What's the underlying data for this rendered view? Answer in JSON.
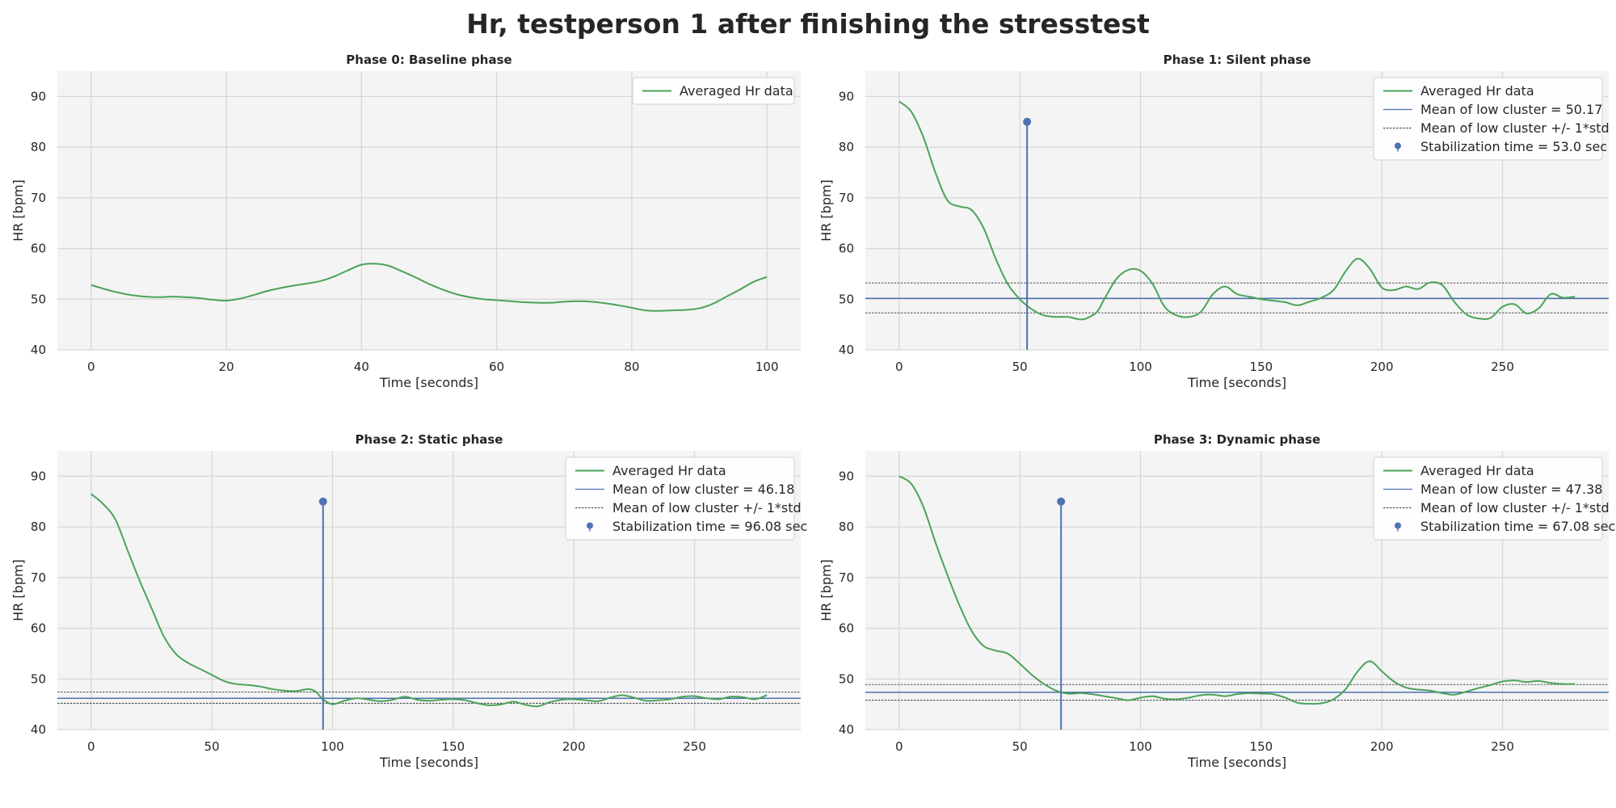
{
  "figure": {
    "title": "Hr, testperson 1 after finishing the stresstest"
  },
  "colors": {
    "hr_line": "#4aa35a",
    "mean_line": "#4c72b0",
    "std_line": "#333333",
    "stab_marker": "#4c72b0",
    "axes_bg": "#f4f4f4",
    "grid": "#d7d7d7"
  },
  "chart_data": [
    {
      "type": "line",
      "title": "Phase 0: Baseline phase",
      "xlabel": "Time [seconds]",
      "ylabel": "HR [bpm]",
      "xlim": [
        -5,
        105
      ],
      "ylim": [
        40,
        95
      ],
      "xticks": [
        0,
        20,
        40,
        60,
        80,
        100
      ],
      "yticks": [
        40,
        50,
        60,
        70,
        80,
        90
      ],
      "grid": true,
      "legend_position": "top-right",
      "series": [
        {
          "name": "Averaged Hr data",
          "x": [
            0,
            2,
            4,
            6,
            8,
            10,
            12,
            14,
            16,
            18,
            20,
            22,
            24,
            26,
            28,
            30,
            32,
            34,
            36,
            38,
            40,
            42,
            44,
            46,
            48,
            50,
            52,
            54,
            56,
            58,
            60,
            62,
            64,
            66,
            68,
            70,
            72,
            74,
            76,
            78,
            80,
            82,
            84,
            86,
            88,
            90,
            92,
            94,
            96,
            98,
            100
          ],
          "y": [
            52.8,
            52.0,
            51.3,
            50.8,
            50.5,
            50.4,
            50.5,
            50.4,
            50.2,
            49.9,
            49.7,
            50.1,
            50.8,
            51.6,
            52.2,
            52.7,
            53.1,
            53.6,
            54.5,
            55.7,
            56.8,
            57.0,
            56.6,
            55.5,
            54.3,
            53.0,
            51.9,
            51.0,
            50.4,
            50.0,
            49.8,
            49.6,
            49.4,
            49.3,
            49.3,
            49.5,
            49.6,
            49.5,
            49.2,
            48.8,
            48.3,
            47.8,
            47.7,
            47.8,
            47.9,
            48.2,
            49.1,
            50.5,
            51.9,
            53.4,
            54.4
          ]
        }
      ],
      "legend": [
        {
          "type": "line",
          "label": "Averaged Hr data"
        }
      ]
    },
    {
      "type": "line",
      "title": "Phase 1: Silent phase",
      "xlabel": "Time [seconds]",
      "ylabel": "HR [bpm]",
      "xlim": [
        -14,
        294
      ],
      "ylim": [
        40,
        95
      ],
      "xticks": [
        0,
        50,
        100,
        150,
        200,
        250
      ],
      "yticks": [
        40,
        50,
        60,
        70,
        80,
        90
      ],
      "grid": true,
      "legend_position": "top-right",
      "series": [
        {
          "name": "Averaged Hr data",
          "x": [
            0,
            5,
            10,
            15,
            20,
            25,
            30,
            35,
            40,
            45,
            50,
            55,
            60,
            65,
            70,
            75,
            78,
            82,
            85,
            90,
            95,
            100,
            105,
            110,
            115,
            120,
            125,
            130,
            135,
            140,
            145,
            150,
            155,
            160,
            165,
            170,
            175,
            180,
            185,
            190,
            195,
            200,
            205,
            210,
            215,
            220,
            225,
            230,
            235,
            240,
            245,
            250,
            255,
            260,
            265,
            270,
            275,
            280
          ],
          "y": [
            89.0,
            87.0,
            82.0,
            75.0,
            69.5,
            68.3,
            67.6,
            64.0,
            58.0,
            53.0,
            50.0,
            48.0,
            46.8,
            46.5,
            46.5,
            46.0,
            46.3,
            47.5,
            50.0,
            54.0,
            55.8,
            55.6,
            53.0,
            48.5,
            46.8,
            46.5,
            47.5,
            51.0,
            52.5,
            51.0,
            50.5,
            50.0,
            49.7,
            49.4,
            48.8,
            49.5,
            50.3,
            51.8,
            55.5,
            58.0,
            56.0,
            52.3,
            51.8,
            52.5,
            52.0,
            53.3,
            52.8,
            49.5,
            47.0,
            46.2,
            46.3,
            48.5,
            49.0,
            47.2,
            48.2,
            51.0,
            50.3,
            50.5
          ]
        }
      ],
      "mean_low_cluster": 50.17,
      "std_band": [
        47.3,
        53.2
      ],
      "stabilization": {
        "time": 53.0,
        "marker_y": 85
      },
      "legend": [
        {
          "type": "line",
          "label": "Averaged Hr data"
        },
        {
          "type": "mean",
          "label": "Mean of low cluster = 50.17"
        },
        {
          "type": "std",
          "label": "Mean of low cluster +/- 1*std"
        },
        {
          "type": "stem",
          "label": "Stabilization time = 53.0 sec"
        }
      ]
    },
    {
      "type": "line",
      "title": "Phase 2: Static phase",
      "xlabel": "Time [seconds]",
      "ylabel": "HR [bpm]",
      "xlim": [
        -14,
        294
      ],
      "ylim": [
        40,
        95
      ],
      "xticks": [
        0,
        50,
        100,
        150,
        200,
        250
      ],
      "yticks": [
        40,
        50,
        60,
        70,
        80,
        90
      ],
      "grid": true,
      "legend_position": "top-right",
      "series": [
        {
          "name": "Averaged Hr data",
          "x": [
            0,
            5,
            10,
            15,
            20,
            25,
            30,
            35,
            40,
            45,
            50,
            55,
            60,
            65,
            70,
            75,
            80,
            85,
            90,
            93,
            96,
            100,
            105,
            110,
            115,
            120,
            125,
            130,
            135,
            140,
            145,
            150,
            155,
            160,
            165,
            170,
            175,
            180,
            185,
            190,
            195,
            200,
            205,
            210,
            215,
            220,
            225,
            230,
            235,
            240,
            245,
            250,
            255,
            260,
            265,
            270,
            275,
            280
          ],
          "y": [
            86.5,
            84.5,
            81.5,
            75.5,
            69.5,
            64.0,
            58.5,
            55.0,
            53.2,
            52.0,
            50.8,
            49.6,
            49.0,
            48.8,
            48.5,
            48.0,
            47.7,
            47.6,
            48.0,
            47.5,
            46.0,
            45.0,
            45.7,
            46.2,
            45.9,
            45.6,
            45.9,
            46.5,
            45.9,
            45.7,
            45.9,
            46.0,
            45.8,
            45.2,
            44.8,
            45.0,
            45.5,
            44.9,
            44.6,
            45.4,
            45.9,
            46.0,
            45.8,
            45.6,
            46.3,
            46.8,
            46.3,
            45.7,
            45.8,
            46.0,
            46.5,
            46.6,
            46.2,
            46.0,
            46.5,
            46.4,
            46.0,
            46.8
          ]
        }
      ],
      "mean_low_cluster": 46.18,
      "std_band": [
        45.2,
        47.4
      ],
      "stabilization": {
        "time": 96.08,
        "marker_y": 85
      },
      "legend": [
        {
          "type": "line",
          "label": "Averaged Hr data"
        },
        {
          "type": "mean",
          "label": "Mean of low cluster = 46.18"
        },
        {
          "type": "std",
          "label": "Mean of low cluster +/- 1*std"
        },
        {
          "type": "stem",
          "label": "Stabilization time = 96.08 sec"
        }
      ]
    },
    {
      "type": "line",
      "title": "Phase 3: Dynamic phase",
      "xlabel": "Time [seconds]",
      "ylabel": "HR [bpm]",
      "xlim": [
        -14,
        294
      ],
      "ylim": [
        40,
        95
      ],
      "xticks": [
        0,
        50,
        100,
        150,
        200,
        250
      ],
      "yticks": [
        40,
        50,
        60,
        70,
        80,
        90
      ],
      "grid": true,
      "legend_position": "top-right",
      "series": [
        {
          "name": "Averaged Hr data",
          "x": [
            0,
            5,
            10,
            15,
            20,
            25,
            30,
            35,
            40,
            45,
            50,
            55,
            60,
            65,
            70,
            75,
            80,
            85,
            90,
            95,
            100,
            105,
            110,
            115,
            120,
            125,
            130,
            135,
            140,
            145,
            150,
            155,
            160,
            165,
            170,
            175,
            180,
            185,
            190,
            195,
            200,
            205,
            210,
            215,
            220,
            225,
            230,
            235,
            240,
            245,
            250,
            255,
            260,
            265,
            270,
            275,
            280
          ],
          "y": [
            90.0,
            88.5,
            84.0,
            77.0,
            70.5,
            64.5,
            59.5,
            56.5,
            55.6,
            55.0,
            53.0,
            50.8,
            49.0,
            47.7,
            47.1,
            47.2,
            47.0,
            46.6,
            46.2,
            45.8,
            46.3,
            46.6,
            46.1,
            46.0,
            46.3,
            46.8,
            46.9,
            46.6,
            47.0,
            47.2,
            47.1,
            47.0,
            46.3,
            45.3,
            45.1,
            45.2,
            46.0,
            48.0,
            51.5,
            53.5,
            51.5,
            49.5,
            48.3,
            47.9,
            47.7,
            47.2,
            46.9,
            47.5,
            48.2,
            48.8,
            49.5,
            49.7,
            49.4,
            49.6,
            49.2,
            49.0,
            49.0
          ]
        }
      ],
      "mean_low_cluster": 47.38,
      "std_band": [
        45.8,
        48.9
      ],
      "stabilization": {
        "time": 67.08,
        "marker_y": 85
      },
      "legend": [
        {
          "type": "line",
          "label": "Averaged Hr data"
        },
        {
          "type": "mean",
          "label": "Mean of low cluster = 47.38"
        },
        {
          "type": "std",
          "label": "Mean of low cluster +/- 1*std"
        },
        {
          "type": "stem",
          "label": "Stabilization time = 67.08 sec"
        }
      ]
    }
  ]
}
